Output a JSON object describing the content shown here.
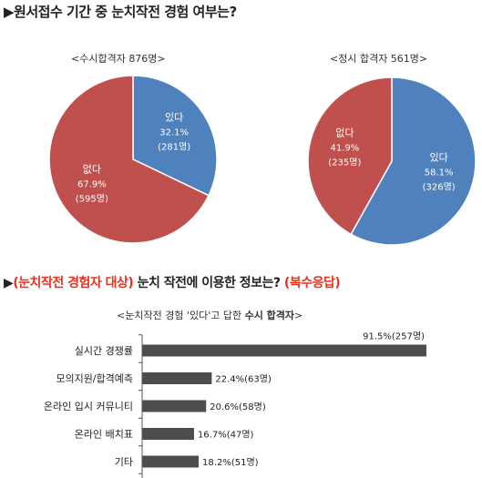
{
  "section1": {
    "marker": "▶",
    "title": "원서접수 기간 중 눈치작전 경험 여부는?"
  },
  "section2": {
    "marker": "▶",
    "title_red1": "(눈치작전 경험자 대상)",
    "title_mid": " 눈치 작전에 이용한 정보는? ",
    "title_red2": "(복수응답)"
  },
  "chart_data": [
    {
      "type": "pie",
      "title": "<수시합격자 876명>",
      "slices": [
        {
          "label": "있다",
          "percent": "32.1%",
          "count": "(281명)",
          "value": 32.1,
          "color": "#4f81bd"
        },
        {
          "label": "없다",
          "percent": "67.9%",
          "count": "(595명)",
          "value": 67.9,
          "color": "#c0504d"
        }
      ]
    },
    {
      "type": "pie",
      "title": "<정시 합격자 561명>",
      "slices": [
        {
          "label": "있다",
          "percent": "58.1%",
          "count": "(326명)",
          "value": 58.1,
          "color": "#4f81bd"
        },
        {
          "label": "없다",
          "percent": "41.9%",
          "count": "(235명)",
          "value": 41.9,
          "color": "#c0504d"
        }
      ]
    },
    {
      "type": "bar",
      "orientation": "horizontal",
      "title_pre": "<눈치작전 경험 '있다'고 답한 ",
      "title_bold": "수시 합격자",
      "title_post": ">",
      "categories": [
        "실시간 경쟁률",
        "모의지원/합격예측",
        "온라인 입시 커뮤니티",
        "온라인 배치표",
        "기타"
      ],
      "values": [
        91.5,
        22.4,
        20.6,
        16.7,
        18.2
      ],
      "value_labels": [
        "91.5%(257명)",
        "22.4%(63명)",
        "20.6%(58명)",
        "16.7%(47명)",
        "18.2%(51명)"
      ],
      "xlim": [
        0,
        100
      ],
      "color": "#4d4d4d"
    }
  ]
}
